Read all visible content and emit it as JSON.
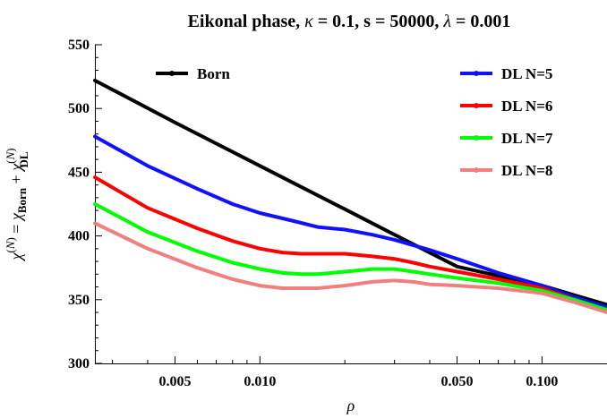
{
  "chart_data": {
    "type": "line",
    "title": "Eikonal phase, κ = 0.1, s = 50000, λ = 0.001",
    "xlabel": "ρ",
    "ylabel": "χ(N) = χBorn + χDL(N)",
    "x_scale": "log",
    "xlim": [
      0.0026,
      0.17
    ],
    "ylim": [
      300,
      550
    ],
    "x_ticks": [
      0.005,
      0.01,
      0.05,
      0.1
    ],
    "x_tick_labels": [
      "0.005",
      "0.010",
      "0.050",
      "0.100"
    ],
    "y_ticks": [
      300,
      350,
      400,
      450,
      500,
      550
    ],
    "y_tick_labels": [
      "300",
      "350",
      "400",
      "450",
      "500",
      "550"
    ],
    "legend": {
      "placement": "top",
      "entries": [
        "Born",
        "DL N=5",
        "DL N=6",
        "DL N=7",
        "DL N=8"
      ]
    },
    "grid": false,
    "series": [
      {
        "name": "Born",
        "color": "#000000",
        "x": [
          0.0026,
          0.005,
          0.01,
          0.02,
          0.03,
          0.05,
          0.1,
          0.17
        ],
        "y": [
          522,
          489,
          455,
          421,
          401,
          376,
          361,
          346
        ]
      },
      {
        "name": "DL N=5",
        "color": "#1010ff",
        "x": [
          0.0026,
          0.004,
          0.006,
          0.008,
          0.01,
          0.013,
          0.016,
          0.02,
          0.025,
          0.03,
          0.04,
          0.05,
          0.07,
          0.1,
          0.13,
          0.17
        ],
        "y": [
          478,
          455,
          437,
          425,
          418,
          412,
          407,
          405,
          401,
          397,
          389,
          382,
          371,
          361,
          352,
          344
        ]
      },
      {
        "name": "DL N=6",
        "color": "#ff0000",
        "x": [
          0.0026,
          0.004,
          0.006,
          0.008,
          0.01,
          0.012,
          0.014,
          0.016,
          0.02,
          0.025,
          0.03,
          0.035,
          0.04,
          0.05,
          0.07,
          0.1,
          0.13,
          0.17
        ],
        "y": [
          446,
          422,
          406,
          396,
          390,
          387,
          386,
          386,
          386,
          384,
          382,
          379,
          376,
          372,
          366,
          359,
          350,
          342
        ]
      },
      {
        "name": "DL N=7",
        "color": "#00ff00",
        "x": [
          0.0026,
          0.004,
          0.006,
          0.008,
          0.01,
          0.012,
          0.014,
          0.016,
          0.018,
          0.02,
          0.025,
          0.03,
          0.035,
          0.04,
          0.05,
          0.07,
          0.1,
          0.13,
          0.17
        ],
        "y": [
          425,
          403,
          388,
          379,
          374,
          371,
          370,
          370,
          371,
          372,
          374,
          374,
          372,
          370,
          367,
          363,
          357,
          350,
          342
        ]
      },
      {
        "name": "DL N=8",
        "color": "#f08080",
        "x": [
          0.0026,
          0.004,
          0.006,
          0.008,
          0.01,
          0.012,
          0.014,
          0.016,
          0.02,
          0.025,
          0.03,
          0.035,
          0.04,
          0.05,
          0.07,
          0.1,
          0.13,
          0.17
        ],
        "y": [
          410,
          390,
          375,
          366,
          361,
          359,
          359,
          359,
          361,
          364,
          365,
          364,
          362,
          361,
          359,
          355,
          348,
          340
        ]
      }
    ]
  }
}
